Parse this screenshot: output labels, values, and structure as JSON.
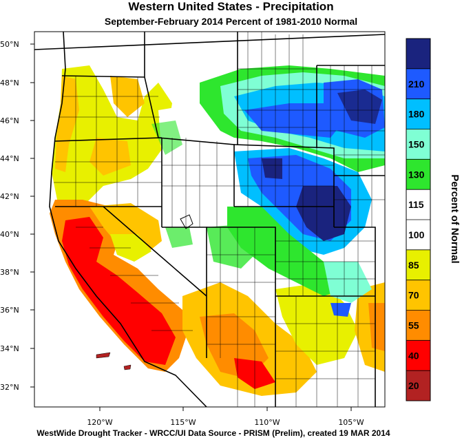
{
  "title": "Western United States - Precipitation",
  "subtitle": "September-February 2014  Percent of 1981-2010 Normal",
  "footer": "WestWide Drought Tracker - WRCC/UI  Data Source - PRISM (Prelim), created 19 MAR 2014",
  "colorbar": {
    "title": "Percent of Normal",
    "labels": [
      "20",
      "40",
      "55",
      "70",
      "85",
      "100",
      "115",
      "130",
      "150",
      "180",
      "210"
    ],
    "colors": [
      "#b22222",
      "#ff0000",
      "#ff8c00",
      "#ffc400",
      "#e8f000",
      "#ffffff",
      "#ffffff",
      "#2ee62e",
      "#7fffd4",
      "#00bfff",
      "#1e5aff",
      "#1a237e"
    ]
  },
  "axes": {
    "lat_labels": [
      "50°N",
      "48°N",
      "46°N",
      "44°N",
      "42°N",
      "40°N",
      "38°N",
      "36°N",
      "34°N",
      "32°N"
    ],
    "lon_labels": [
      "120°W",
      "115°W",
      "110°W",
      "105°W"
    ]
  }
}
